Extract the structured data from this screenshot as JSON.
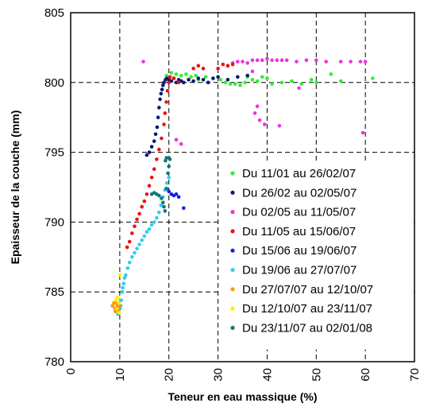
{
  "chart_data": {
    "type": "scatter",
    "xlabel": "Teneur en eau massique (%)",
    "ylabel": "Epaisseur de la couche (mm)",
    "xlim": [
      0,
      70
    ],
    "ylim": [
      780,
      805
    ],
    "xticks": [
      0,
      10,
      20,
      30,
      40,
      50,
      60,
      70
    ],
    "yticks": [
      780,
      785,
      790,
      795,
      800,
      805
    ],
    "xtick_labels": [
      "0",
      "10",
      "20",
      "30",
      "40",
      "50",
      "60",
      "70"
    ],
    "ytick_labels": [
      "780",
      "785",
      "790",
      "795",
      "800",
      "805"
    ],
    "grid": true,
    "legend_position": "right",
    "series": [
      {
        "name": "Du 11/01 au 26/02/07",
        "color": "#33ee33",
        "points": [
          [
            19.5,
            800.5
          ],
          [
            20.5,
            800.7
          ],
          [
            21.5,
            800.6
          ],
          [
            22.5,
            800.5
          ],
          [
            23.5,
            800.6
          ],
          [
            24.5,
            800.4
          ],
          [
            25.5,
            800.5
          ],
          [
            26,
            800.2
          ],
          [
            27.5,
            800.4
          ],
          [
            29,
            800.3
          ],
          [
            30.5,
            800.2
          ],
          [
            31.5,
            800.0
          ],
          [
            32.5,
            799.9
          ],
          [
            33.5,
            799.9
          ],
          [
            34.5,
            799.8
          ],
          [
            35.5,
            800.0
          ],
          [
            36,
            800.4
          ],
          [
            37,
            800.2
          ],
          [
            38,
            800.1
          ],
          [
            39,
            800.4
          ],
          [
            40,
            800.3
          ],
          [
            41,
            799.9
          ],
          [
            43,
            800.0
          ],
          [
            45,
            800.1
          ],
          [
            47,
            799.9
          ],
          [
            49,
            800.2
          ],
          [
            50,
            800.0
          ],
          [
            53,
            800.6
          ],
          [
            55,
            800.1
          ],
          [
            61.5,
            800.3
          ]
        ]
      },
      {
        "name": "Du 26/02 au 02/05/07",
        "color": "#0a1a6e",
        "points": [
          [
            15.5,
            794.8
          ],
          [
            16,
            795.0
          ],
          [
            16.5,
            795.4
          ],
          [
            17,
            795.8
          ],
          [
            17.3,
            796.3
          ],
          [
            17.6,
            796.8
          ],
          [
            17.8,
            797.5
          ],
          [
            18,
            798.2
          ],
          [
            18.2,
            798.8
          ],
          [
            18.4,
            799.2
          ],
          [
            18.6,
            799.5
          ],
          [
            18.8,
            799.8
          ],
          [
            19,
            800.0
          ],
          [
            19.3,
            800.2
          ],
          [
            19.6,
            800.3
          ],
          [
            20,
            800.2
          ],
          [
            20.5,
            800.1
          ],
          [
            21,
            800.3
          ],
          [
            21.5,
            800.0
          ],
          [
            22,
            800.2
          ],
          [
            22.5,
            800.1
          ],
          [
            23,
            800.0
          ],
          [
            24,
            800.2
          ],
          [
            25,
            800.1
          ],
          [
            26,
            800.3
          ],
          [
            27,
            800.2
          ],
          [
            28,
            800.0
          ],
          [
            29,
            800.3
          ],
          [
            30,
            800.4
          ],
          [
            32,
            800.2
          ],
          [
            34,
            800.4
          ],
          [
            36,
            800.5
          ]
        ]
      },
      {
        "name": "Du 02/05 au 11/05/07",
        "color": "#ee33dd",
        "points": [
          [
            14.8,
            801.5
          ],
          [
            32,
            801.2
          ],
          [
            33,
            801.4
          ],
          [
            34,
            801.5
          ],
          [
            35,
            801.5
          ],
          [
            36,
            801.4
          ],
          [
            37,
            801.6
          ],
          [
            38,
            801.6
          ],
          [
            39,
            801.6
          ],
          [
            40,
            801.7
          ],
          [
            41,
            801.6
          ],
          [
            42,
            801.6
          ],
          [
            43,
            801.6
          ],
          [
            44,
            801.6
          ],
          [
            46,
            801.5
          ],
          [
            48,
            801.6
          ],
          [
            50,
            801.6
          ],
          [
            52,
            801.5
          ],
          [
            55,
            801.5
          ],
          [
            57,
            801.5
          ],
          [
            59,
            801.5
          ],
          [
            60,
            801.5
          ],
          [
            37,
            800.8
          ],
          [
            38,
            798.3
          ],
          [
            37.5,
            797.8
          ],
          [
            38.5,
            797.3
          ],
          [
            39.5,
            797.0
          ],
          [
            42.5,
            796.9
          ],
          [
            46.5,
            799.6
          ],
          [
            59.5,
            796.4
          ],
          [
            21.5,
            795.9
          ],
          [
            22.5,
            795.6
          ]
        ]
      },
      {
        "name": "Du 11/05 au 15/06/07",
        "color": "#ee1111",
        "points": [
          [
            11.5,
            788.2
          ],
          [
            12,
            788.6
          ],
          [
            12.5,
            789.2
          ],
          [
            13,
            789.7
          ],
          [
            13.5,
            790.2
          ],
          [
            14,
            790.6
          ],
          [
            14.5,
            791.1
          ],
          [
            15,
            791.5
          ],
          [
            15.5,
            792.0
          ],
          [
            16,
            792.6
          ],
          [
            16.5,
            793.2
          ],
          [
            17,
            793.8
          ],
          [
            17.5,
            794.5
          ],
          [
            18,
            795.2
          ],
          [
            18.5,
            796.0
          ],
          [
            19,
            797.0
          ],
          [
            19.2,
            797.8
          ],
          [
            19.5,
            798.6
          ],
          [
            19.7,
            799.4
          ],
          [
            20,
            800.0
          ],
          [
            20.2,
            800.4
          ],
          [
            21,
            800.3
          ],
          [
            22,
            800.0
          ],
          [
            25,
            801.0
          ],
          [
            26,
            801.2
          ],
          [
            27,
            801.0
          ],
          [
            30,
            801.0
          ],
          [
            31,
            801.3
          ],
          [
            32,
            801.2
          ],
          [
            33,
            801.3
          ]
        ]
      },
      {
        "name": "Du 15/06 au 19/06/07",
        "color": "#1122dd",
        "points": [
          [
            19.5,
            792.4
          ],
          [
            20,
            792.2
          ],
          [
            20.5,
            792.0
          ],
          [
            21,
            791.9
          ],
          [
            21.5,
            792.0
          ],
          [
            22,
            791.8
          ],
          [
            23,
            791.0
          ]
        ]
      },
      {
        "name": "Du 19/06 au 27/07/07",
        "color": "#33ccee",
        "points": [
          [
            9.6,
            783.4
          ],
          [
            10,
            783.8
          ],
          [
            10.3,
            784.4
          ],
          [
            10.5,
            785.0
          ],
          [
            10.8,
            785.6
          ],
          [
            11.2,
            786.2
          ],
          [
            11.6,
            786.7
          ],
          [
            12,
            787.1
          ],
          [
            12.5,
            787.5
          ],
          [
            13,
            787.8
          ],
          [
            13.5,
            788.1
          ],
          [
            14,
            788.4
          ],
          [
            14.5,
            788.7
          ],
          [
            15,
            789.0
          ],
          [
            15.5,
            789.3
          ],
          [
            16,
            789.5
          ],
          [
            16.5,
            789.8
          ],
          [
            17,
            790.0
          ],
          [
            17.5,
            790.3
          ],
          [
            18,
            790.7
          ],
          [
            18.4,
            791.2
          ],
          [
            18.8,
            791.8
          ],
          [
            19.2,
            792.3
          ],
          [
            19.6,
            792.8
          ],
          [
            20,
            793.2
          ],
          [
            10.2,
            784.0
          ],
          [
            10.6,
            785.3
          ],
          [
            11,
            786.0
          ]
        ]
      },
      {
        "name": "Du 27/07/07 au 12/10/07",
        "color": "#ff9900",
        "points": [
          [
            8.5,
            784.0
          ],
          [
            8.8,
            784.2
          ],
          [
            9,
            783.8
          ],
          [
            9.2,
            784.3
          ],
          [
            9.4,
            783.9
          ],
          [
            9.5,
            784.1
          ],
          [
            9.7,
            783.7
          ],
          [
            9.9,
            784.0
          ],
          [
            9.1,
            783.6
          ]
        ]
      },
      {
        "name": "Du 12/10/07 au 23/11/07",
        "color": "#ffee00",
        "points": [
          [
            9.2,
            784.4
          ],
          [
            9.6,
            784.6
          ],
          [
            9.8,
            784.2
          ],
          [
            10,
            786.2
          ],
          [
            9.4,
            783.8
          ],
          [
            9.9,
            783.5
          ]
        ]
      },
      {
        "name": "Du 23/11/07 au 02/01/08",
        "color": "#117777",
        "points": [
          [
            16.5,
            792.0
          ],
          [
            17,
            792.1
          ],
          [
            17.5,
            792.0
          ],
          [
            18,
            791.9
          ],
          [
            18.5,
            791.7
          ],
          [
            18.8,
            791.4
          ],
          [
            19,
            791.1
          ],
          [
            19.2,
            790.8
          ],
          [
            19.5,
            792.4
          ],
          [
            19.8,
            793.5
          ],
          [
            20,
            794.0
          ],
          [
            20.2,
            794.5
          ],
          [
            20,
            794.6
          ],
          [
            19.5,
            794.6
          ],
          [
            19.3,
            794.4
          ]
        ]
      }
    ]
  }
}
